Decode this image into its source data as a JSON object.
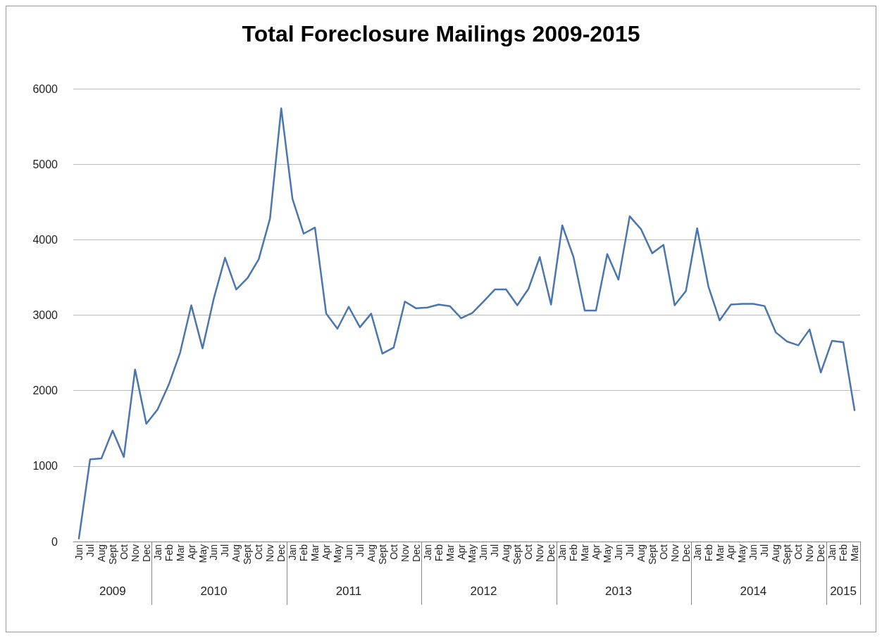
{
  "chart_data": {
    "type": "line",
    "title": "Total Foreclosure Mailings 2009-2015",
    "categories": [
      "Jun",
      "Jul",
      "Aug",
      "Sept",
      "Oct",
      "Nov",
      "Dec",
      "Jan",
      "Feb",
      "Mar",
      "Apr",
      "May",
      "Jun",
      "Jul",
      "Aug",
      "Sept",
      "Oct",
      "Nov",
      "Dec",
      "Jan",
      "Feb",
      "Mar",
      "Apr",
      "May",
      "Jun",
      "Jul",
      "Aug",
      "Sept",
      "Oct",
      "Nov",
      "Dec",
      "Jan",
      "Feb",
      "Mar",
      "Apr",
      "May",
      "Jun",
      "Jul",
      "Aug",
      "Sept",
      "Oct",
      "Nov",
      "Dec",
      "Jan",
      "Feb",
      "Mar",
      "Apr",
      "May",
      "Jun",
      "Jul",
      "Aug",
      "Sept",
      "Oct",
      "Nov",
      "Dec",
      "Jan",
      "Feb",
      "Mar",
      "Apr",
      "May",
      "Jun",
      "Jul",
      "Aug",
      "Sept",
      "Oct",
      "Nov",
      "Dec",
      "Jan",
      "Feb",
      "Mar"
    ],
    "series": [
      {
        "color": "#4a76b0",
        "values": [
          40,
          1090,
          1100,
          1470,
          1120,
          2280,
          1560,
          1750,
          2080,
          2500,
          3130,
          2560,
          3220,
          3760,
          3340,
          3490,
          3740,
          4280,
          5740,
          4540,
          4080,
          4160,
          3020,
          2820,
          3110,
          2840,
          3020,
          2490,
          2570,
          3180,
          3090,
          3100,
          3140,
          3120,
          2960,
          3030,
          3180,
          3340,
          3340,
          3130,
          3350,
          3770,
          3140,
          4190,
          3770,
          3060,
          3060,
          3810,
          3470,
          4310,
          4140,
          3820,
          3930,
          3130,
          3320,
          4150,
          3380,
          2930,
          3140,
          3150,
          3150,
          3120,
          2770,
          2650,
          2600,
          2810,
          2240,
          2660,
          2640,
          1740
        ]
      }
    ],
    "annotations": [
      "2009",
      "2010",
      "2011",
      "2012",
      "2013",
      "2014",
      "2015"
    ],
    "ylim": [
      0,
      6000
    ],
    "yticks": [
      0,
      1000,
      2000,
      3000,
      4000,
      5000,
      6000
    ],
    "grid": "y",
    "marker": "none",
    "line_style": "solid"
  }
}
